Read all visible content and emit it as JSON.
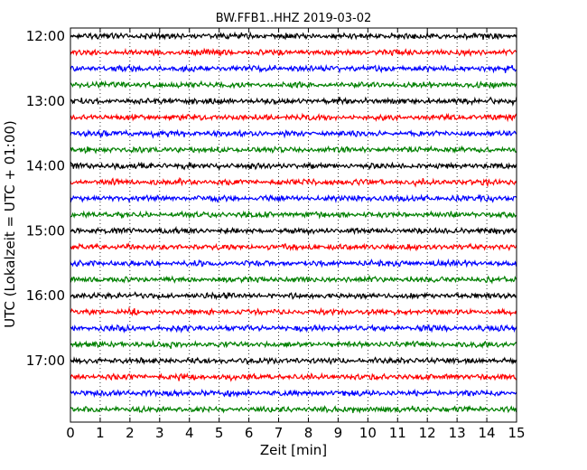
{
  "chart_data": {
    "type": "line",
    "title": "BW.FFB1..HHZ 2019-03-02",
    "xlabel": "Zeit  [min]",
    "ylabel": "UTC (Lokalzeit = UTC + 01:00)",
    "xlim": [
      0,
      15
    ],
    "x_ticks": [
      "0",
      "1",
      "2",
      "3",
      "4",
      "5",
      "6",
      "7",
      "8",
      "9",
      "10",
      "11",
      "12",
      "13",
      "14",
      "15"
    ],
    "y_tick_labels": [
      "12:00",
      "13:00",
      "14:00",
      "15:00",
      "16:00",
      "17:00"
    ],
    "trace_start_times": [
      "12:00",
      "12:15",
      "12:30",
      "12:45",
      "13:00",
      "13:15",
      "13:30",
      "13:45",
      "14:00",
      "14:15",
      "14:30",
      "14:45",
      "15:00",
      "15:15",
      "15:30",
      "15:45",
      "16:00",
      "16:15",
      "16:30",
      "16:45",
      "17:00",
      "17:15",
      "17:30",
      "17:45"
    ],
    "trace_colors": [
      "#000000",
      "#ff0000",
      "#0000ff",
      "#008000"
    ],
    "grid": "vertical-dotted",
    "legend": "none"
  }
}
